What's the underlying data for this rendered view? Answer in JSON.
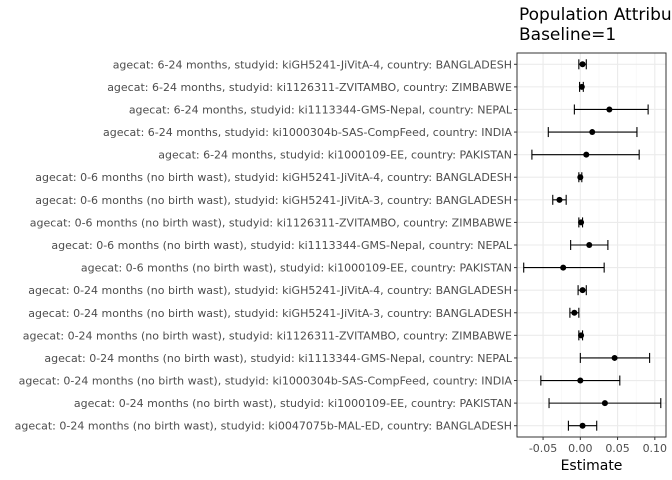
{
  "chart_data": {
    "type": "scatter",
    "title_line1": "Population Attributa",
    "title_line2": "Baseline=1",
    "xlabel": "Estimate",
    "ylabel": "",
    "xlim": [
      -0.085,
      0.115
    ],
    "xticks": [
      -0.05,
      0.0,
      0.05,
      0.1
    ],
    "xtick_labels": [
      "-0.05",
      "0.00",
      "0.05",
      "0.10"
    ],
    "grid": true,
    "points": [
      {
        "label": "agecat: 6-24 months, studyid: kiGH5241-JiVitA-4, country: BANGLADESH",
        "estimate": 0.003,
        "lower": -0.002,
        "upper": 0.008
      },
      {
        "label": "agecat: 6-24 months, studyid: ki1126311-ZVITAMBO, country: ZIMBABWE",
        "estimate": 0.002,
        "lower": -0.001,
        "upper": 0.004
      },
      {
        "label": "agecat: 6-24 months, studyid: ki1113344-GMS-Nepal, country: NEPAL",
        "estimate": 0.039,
        "lower": -0.008,
        "upper": 0.091
      },
      {
        "label": "agecat: 6-24 months, studyid: ki1000304b-SAS-CompFeed, country: INDIA",
        "estimate": 0.016,
        "lower": -0.043,
        "upper": 0.076
      },
      {
        "label": "agecat: 6-24 months, studyid: ki1000109-EE, country: PAKISTAN",
        "estimate": 0.008,
        "lower": -0.065,
        "upper": 0.079
      },
      {
        "label": "agecat: 0-6 months (no birth wast), studyid: kiGH5241-JiVitA-4, country: BANGLADESH",
        "estimate": 0.0,
        "lower": -0.002,
        "upper": 0.002
      },
      {
        "label": "agecat: 0-6 months (no birth wast), studyid: kiGH5241-JiVitA-3, country: BANGLADESH",
        "estimate": -0.028,
        "lower": -0.037,
        "upper": -0.019
      },
      {
        "label": "agecat: 0-6 months (no birth wast), studyid: ki1126311-ZVITAMBO, country: ZIMBABWE",
        "estimate": 0.001,
        "lower": -0.002,
        "upper": 0.003
      },
      {
        "label": "agecat: 0-6 months (no birth wast), studyid: ki1113344-GMS-Nepal, country: NEPAL",
        "estimate": 0.012,
        "lower": -0.013,
        "upper": 0.037
      },
      {
        "label": "agecat: 0-6 months (no birth wast), studyid: ki1000109-EE, country: PAKISTAN",
        "estimate": -0.023,
        "lower": -0.076,
        "upper": 0.032
      },
      {
        "label": "agecat: 0-24 months (no birth wast), studyid: kiGH5241-JiVitA-4, country: BANGLADESH",
        "estimate": 0.003,
        "lower": -0.003,
        "upper": 0.008
      },
      {
        "label": "agecat: 0-24 months (no birth wast), studyid: kiGH5241-JiVitA-3, country: BANGLADESH",
        "estimate": -0.008,
        "lower": -0.014,
        "upper": -0.002
      },
      {
        "label": "agecat: 0-24 months (no birth wast), studyid: ki1126311-ZVITAMBO, country: ZIMBABWE",
        "estimate": 0.001,
        "lower": -0.002,
        "upper": 0.003
      },
      {
        "label": "agecat: 0-24 months (no birth wast), studyid: ki1113344-GMS-Nepal, country: NEPAL",
        "estimate": 0.046,
        "lower": 0.0,
        "upper": 0.093
      },
      {
        "label": "agecat: 0-24 months (no birth wast), studyid: ki1000304b-SAS-CompFeed, country: INDIA",
        "estimate": 0.0,
        "lower": -0.053,
        "upper": 0.053
      },
      {
        "label": "agecat: 0-24 months (no birth wast), studyid: ki1000109-EE, country: PAKISTAN",
        "estimate": 0.033,
        "lower": -0.042,
        "upper": 0.108
      },
      {
        "label": "agecat: 0-24 months (no birth wast), studyid: ki0047075b-MAL-ED, country: BANGLADESH",
        "estimate": 0.003,
        "lower": -0.016,
        "upper": 0.022
      }
    ],
    "colors": {
      "point": "#000000",
      "grid_major": "#ebebeb",
      "grid_minor": "#f5f5f5",
      "panel_border": "#333333"
    }
  }
}
